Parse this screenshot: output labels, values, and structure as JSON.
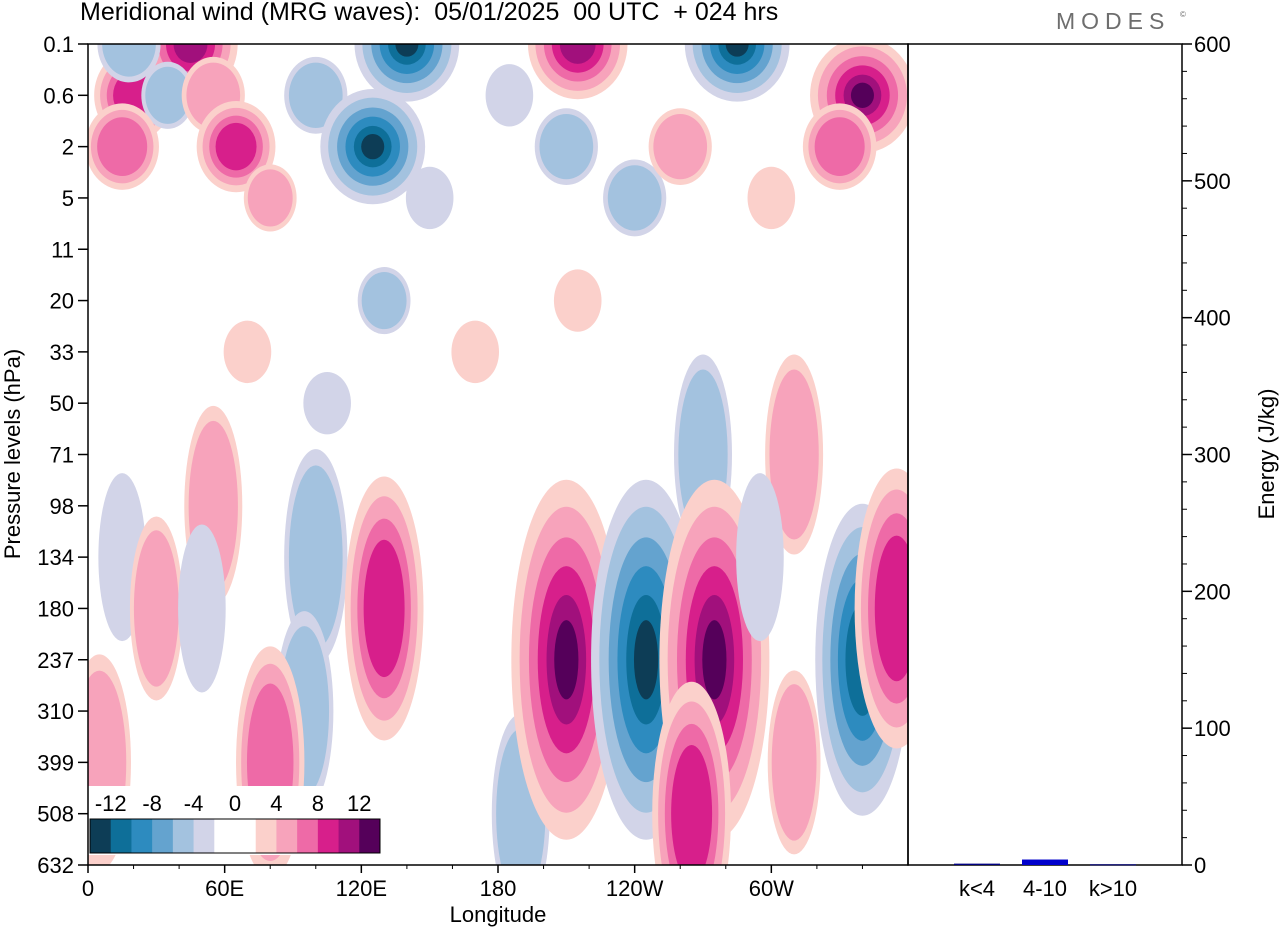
{
  "title": "Meridional wind (MRG waves):  05/01/2025  00 UTC  + 024 hrs",
  "brand": "MODES",
  "brand_mark": "©",
  "chart_data": [
    {
      "type": "heatmap",
      "title": "Meridional wind (MRG waves):  05/01/2025  00 UTC  + 024 hrs",
      "xlabel": "Longitude",
      "ylabel": "Pressure levels (hPa)",
      "x_ticks": [
        "0",
        "60E",
        "120E",
        "180",
        "120W",
        "60W"
      ],
      "x_tick_degrees": [
        0,
        60,
        120,
        180,
        240,
        300
      ],
      "xlim": [
        0,
        360
      ],
      "y_ticks": [
        "0.1",
        "0.6",
        "2",
        "5",
        "11",
        "20",
        "33",
        "50",
        "71",
        "98",
        "134",
        "180",
        "237",
        "310",
        "399",
        "508",
        "632"
      ],
      "y_direction": "pressure decreasing upward",
      "colorbar": {
        "tick_labels": [
          "-12",
          "-8",
          "-4",
          "0",
          "4",
          "8",
          "12"
        ],
        "colors": [
          "#0d3d56",
          "#0e6f99",
          "#2d8bbf",
          "#64a3cf",
          "#a3c2df",
          "#d2d4e8",
          "#ffffff",
          "#ffffff",
          "#fbd0cb",
          "#f7a3bb",
          "#ee6aa7",
          "#d71f8b",
          "#a1107c",
          "#55005a"
        ]
      },
      "anomalies": [
        {
          "lon": 20,
          "p": "0.6",
          "sign": 1,
          "mag": 9
        },
        {
          "lon": 45,
          "p": "0.1",
          "sign": 1,
          "mag": 12
        },
        {
          "lon": 18,
          "p": "0.1",
          "sign": -1,
          "mag": 6
        },
        {
          "lon": 35,
          "p": "0.6",
          "sign": -1,
          "mag": 4
        },
        {
          "lon": 15,
          "p": "2",
          "sign": 1,
          "mag": 8
        },
        {
          "lon": 55,
          "p": "0.6",
          "sign": 1,
          "mag": 6
        },
        {
          "lon": 65,
          "p": "2",
          "sign": 1,
          "mag": 9
        },
        {
          "lon": 80,
          "p": "5",
          "sign": 1,
          "mag": 4
        },
        {
          "lon": 100,
          "p": "0.6",
          "sign": -1,
          "mag": 6
        },
        {
          "lon": 125,
          "p": "2",
          "sign": -1,
          "mag": 14
        },
        {
          "lon": 140,
          "p": "0.1",
          "sign": -1,
          "mag": 14
        },
        {
          "lon": 150,
          "p": "5",
          "sign": -1,
          "mag": 3
        },
        {
          "lon": 185,
          "p": "0.6",
          "sign": -1,
          "mag": 3
        },
        {
          "lon": 215,
          "p": "0.1",
          "sign": 1,
          "mag": 13
        },
        {
          "lon": 210,
          "p": "2",
          "sign": -1,
          "mag": 6
        },
        {
          "lon": 240,
          "p": "5",
          "sign": -1,
          "mag": 6
        },
        {
          "lon": 260,
          "p": "2",
          "sign": 1,
          "mag": 6
        },
        {
          "lon": 285,
          "p": "0.1",
          "sign": -1,
          "mag": 14
        },
        {
          "lon": 340,
          "p": "0.6",
          "sign": 1,
          "mag": 14
        },
        {
          "lon": 330,
          "p": "2",
          "sign": 1,
          "mag": 8
        },
        {
          "lon": 300,
          "p": "5",
          "sign": 1,
          "mag": 3
        },
        {
          "lon": 130,
          "p": "20",
          "sign": -1,
          "mag": 4
        },
        {
          "lon": 70,
          "p": "33",
          "sign": 1,
          "mag": 3
        },
        {
          "lon": 170,
          "p": "33",
          "sign": 1,
          "mag": 3
        },
        {
          "lon": 215,
          "p": "20",
          "sign": 1,
          "mag": 3
        },
        {
          "lon": 105,
          "p": "50",
          "sign": -1,
          "mag": 3
        },
        {
          "lon": 270,
          "p": "71",
          "sign": -1,
          "mag": 5
        },
        {
          "lon": 310,
          "p": "71",
          "sign": 1,
          "mag": 5
        },
        {
          "lon": 55,
          "p": "98",
          "sign": 1,
          "mag": 5
        },
        {
          "lon": 15,
          "p": "134",
          "sign": -1,
          "mag": 3
        },
        {
          "lon": 30,
          "p": "180",
          "sign": 1,
          "mag": 4
        },
        {
          "lon": 50,
          "p": "180",
          "sign": -1,
          "mag": 3
        },
        {
          "lon": 100,
          "p": "134",
          "sign": -1,
          "mag": 6
        },
        {
          "lon": 95,
          "p": "310",
          "sign": -1,
          "mag": 5
        },
        {
          "lon": 130,
          "p": "180",
          "sign": 1,
          "mag": 9
        },
        {
          "lon": 80,
          "p": "399",
          "sign": 1,
          "mag": 7
        },
        {
          "lon": 190,
          "p": "508",
          "sign": -1,
          "mag": 5
        },
        {
          "lon": 210,
          "p": "237",
          "sign": 1,
          "mag": 15
        },
        {
          "lon": 245,
          "p": "237",
          "sign": -1,
          "mag": 15
        },
        {
          "lon": 275,
          "p": "237",
          "sign": 1,
          "mag": 15
        },
        {
          "lon": 265,
          "p": "508",
          "sign": 1,
          "mag": 9
        },
        {
          "lon": 295,
          "p": "134",
          "sign": -1,
          "mag": 3
        },
        {
          "lon": 340,
          "p": "237",
          "sign": -1,
          "mag": 12
        },
        {
          "lon": 355,
          "p": "180",
          "sign": 1,
          "mag": 10
        },
        {
          "lon": 5,
          "p": "399",
          "sign": 1,
          "mag": 6
        },
        {
          "lon": 310,
          "p": "399",
          "sign": 1,
          "mag": 4
        }
      ]
    },
    {
      "type": "bar",
      "ylabel": "Energy (J/kg)",
      "categories": [
        "k<4",
        "4-10",
        "k>10"
      ],
      "values": [
        1,
        4,
        0.5
      ],
      "colors": [
        "#000080",
        "#0000cc",
        "#000080"
      ],
      "ylim": [
        0,
        600
      ],
      "y_ticks": [
        "0",
        "100",
        "200",
        "300",
        "400",
        "500",
        "600"
      ]
    }
  ]
}
